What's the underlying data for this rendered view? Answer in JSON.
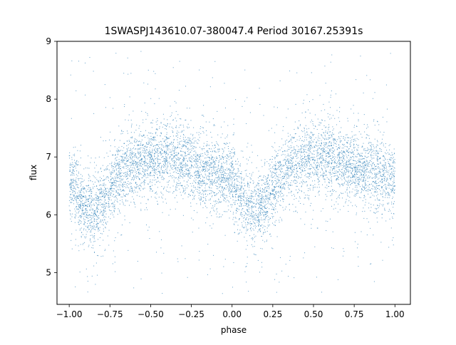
{
  "chart_data": {
    "type": "scatter",
    "title": "1SWASPJ143610.07-380047.4 Period 30167.25391s",
    "xlabel": "phase",
    "ylabel": "flux",
    "xlim": [
      -1.075,
      1.095
    ],
    "ylim": [
      4.45,
      9.0
    ],
    "xticks": [
      -1.0,
      -0.75,
      -0.5,
      -0.25,
      0.0,
      0.25,
      0.5,
      0.75,
      1.0
    ],
    "xtick_labels": [
      "−1.00",
      "−0.75",
      "−0.50",
      "−0.25",
      "0.00",
      "0.25",
      "0.50",
      "0.75",
      "1.00"
    ],
    "yticks": [
      5,
      6,
      7,
      8,
      9
    ],
    "ytick_labels": [
      "5",
      "6",
      "7",
      "8",
      "9"
    ],
    "grid": false,
    "legend": "none",
    "series": [
      {
        "marker_color": "#1f77b4",
        "x_range": [
          -1.0,
          1.0
        ],
        "period_in_phase": 1.0,
        "profile_phase": [
          0.0,
          0.05,
          0.1,
          0.15,
          0.2,
          0.25,
          0.3,
          0.35,
          0.4,
          0.45,
          0.5,
          0.55,
          0.6,
          0.65,
          0.7,
          0.75,
          0.8,
          0.85,
          0.9,
          0.95,
          1.0
        ],
        "profile_flux": [
          6.6,
          6.35,
          6.1,
          6.05,
          6.2,
          6.45,
          6.65,
          6.8,
          6.9,
          6.95,
          6.98,
          7.0,
          7.0,
          6.95,
          6.9,
          6.85,
          6.8,
          6.75,
          6.72,
          6.68,
          6.6
        ],
        "scatter_sigma": 0.3,
        "outlier_flux_range": [
          4.6,
          8.8
        ]
      }
    ]
  }
}
